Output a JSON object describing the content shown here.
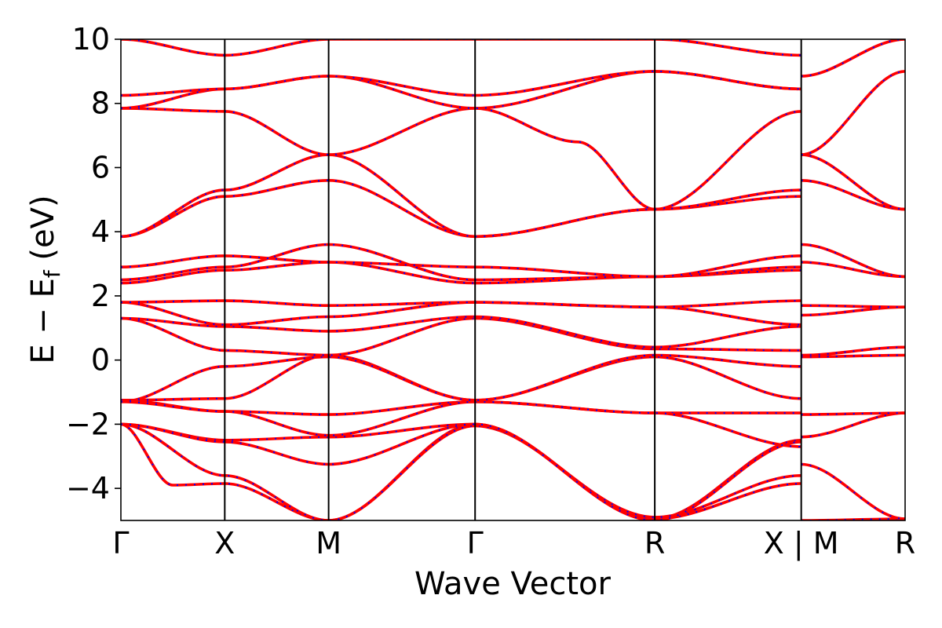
{
  "chart_data": {
    "type": "line",
    "title": "",
    "xlabel": "Wave Vector",
    "ylabel": "E − E",
    "ylabel_subscript": "f",
    "ylabel_unit": " (eV)",
    "ylim": [
      -5,
      10
    ],
    "yticks": [
      -4,
      -2,
      0,
      2,
      4,
      6,
      8,
      10
    ],
    "ytick_labels": [
      "−4",
      "−2",
      "0",
      "2",
      "4",
      "6",
      "8",
      "10"
    ],
    "kpath": [
      {
        "label": "Γ",
        "pos": 0.0
      },
      {
        "label": "X",
        "pos": 1.0
      },
      {
        "label": "M",
        "pos": 2.0
      },
      {
        "label": "Γ",
        "pos": 3.41
      },
      {
        "label": "R",
        "pos": 5.14
      },
      {
        "label": "X | M",
        "pos": 6.55
      },
      {
        "label": "R",
        "pos": 7.55
      }
    ],
    "xlim": [
      0,
      7.55
    ],
    "grid": false,
    "line_colors": {
      "series_a": "#ff0000",
      "series_b": "#0000ff"
    },
    "bands": [
      {
        "x": [
          0,
          1,
          2,
          3.41,
          5.14,
          6.55
        ],
        "y": [
          -2.0,
          -2.5,
          -2.4,
          -2.0,
          -4.95,
          -2.5
        ]
      },
      {
        "x": [
          0,
          0.5,
          1,
          2,
          3.41,
          5.14,
          6.55
        ],
        "y": [
          -2.0,
          -3.9,
          -3.85,
          -5.0,
          -2.0,
          -4.95,
          -3.85
        ]
      },
      {
        "x": [
          0,
          1,
          2,
          3.41,
          5.14,
          6.55
        ],
        "y": [
          -2.0,
          -3.6,
          -5.0,
          -2.05,
          -4.9,
          -3.6
        ]
      },
      {
        "x": [
          0,
          1,
          2,
          3.41,
          5.14,
          6.55
        ],
        "y": [
          -2.0,
          -2.55,
          -3.25,
          -2.0,
          -5.0,
          -2.55
        ]
      },
      {
        "x": [
          0,
          1,
          2,
          3.41,
          5.14,
          6.55
        ],
        "y": [
          -1.25,
          -1.6,
          -1.7,
          -1.3,
          -1.65,
          -1.65
        ]
      },
      {
        "x": [
          0,
          1,
          2,
          3.41,
          5.14,
          6.55
        ],
        "y": [
          -1.3,
          -1.6,
          -2.35,
          -1.3,
          -1.65,
          -2.7
        ]
      },
      {
        "x": [
          0,
          1,
          2,
          3.41,
          5.14,
          6.55
        ],
        "y": [
          -1.25,
          -1.2,
          0.15,
          -1.25,
          0.1,
          -1.2
        ]
      },
      {
        "x": [
          0,
          1,
          2,
          3.41,
          5.14,
          6.55
        ],
        "y": [
          -1.3,
          -0.2,
          0.1,
          -1.25,
          0.15,
          -0.2
        ]
      },
      {
        "x": [
          0,
          1,
          2,
          3.41,
          5.14,
          6.55
        ],
        "y": [
          1.3,
          0.3,
          0.15,
          1.3,
          0.35,
          0.3
        ]
      },
      {
        "x": [
          0,
          1,
          2,
          3.41,
          5.14,
          6.55
        ],
        "y": [
          1.3,
          1.05,
          0.9,
          1.35,
          0.4,
          1.05
        ]
      },
      {
        "x": [
          0,
          1,
          2,
          3.41,
          5.14,
          6.55
        ],
        "y": [
          1.8,
          1.1,
          1.35,
          1.8,
          1.65,
          1.1
        ]
      },
      {
        "x": [
          0,
          1,
          2,
          3.41,
          5.14,
          6.55
        ],
        "y": [
          1.8,
          1.85,
          1.7,
          1.8,
          1.65,
          1.85
        ]
      },
      {
        "x": [
          0,
          1,
          2,
          3.41,
          5.14,
          6.55
        ],
        "y": [
          2.4,
          2.8,
          3.05,
          2.4,
          2.6,
          2.8
        ]
      },
      {
        "x": [
          0,
          1,
          2,
          3.41,
          5.14,
          6.55
        ],
        "y": [
          2.5,
          2.9,
          3.6,
          2.5,
          2.6,
          2.9
        ]
      },
      {
        "x": [
          0,
          1,
          2,
          3.41,
          5.14,
          6.55
        ],
        "y": [
          2.9,
          3.25,
          3.05,
          2.9,
          2.6,
          3.25
        ]
      },
      {
        "x": [
          0,
          1,
          2,
          3.41,
          5.14,
          6.55
        ],
        "y": [
          3.85,
          5.1,
          5.6,
          3.85,
          4.7,
          5.1
        ]
      },
      {
        "x": [
          0,
          1,
          2,
          3.41,
          5.14,
          6.55
        ],
        "y": [
          3.85,
          5.3,
          6.4,
          3.85,
          4.7,
          5.3
        ]
      },
      {
        "x": [
          0,
          1,
          2,
          3.41,
          4.4,
          5.14,
          6.55
        ],
        "y": [
          7.85,
          7.75,
          6.4,
          7.85,
          6.8,
          4.7,
          7.75
        ]
      },
      {
        "x": [
          0,
          1,
          2,
          3.41,
          5.14,
          6.55
        ],
        "y": [
          7.85,
          8.45,
          8.85,
          7.85,
          9.0,
          8.45
        ]
      },
      {
        "x": [
          0,
          1,
          2,
          3.41,
          5.14,
          6.55
        ],
        "y": [
          8.25,
          8.45,
          8.85,
          8.25,
          9.0,
          8.45
        ]
      },
      {
        "x": [
          0,
          1,
          2,
          3.41,
          5.14,
          6.55
        ],
        "y": [
          10.0,
          9.5,
          10.0,
          10.0,
          10.0,
          9.5
        ]
      },
      {
        "x": [
          6.55,
          7.55
        ],
        "y": [
          -5.0,
          -4.95
        ]
      },
      {
        "x": [
          6.55,
          7.55
        ],
        "y": [
          -3.25,
          -4.95
        ]
      },
      {
        "x": [
          6.55,
          7.55
        ],
        "y": [
          -2.4,
          -1.65
        ]
      },
      {
        "x": [
          6.55,
          7.55
        ],
        "y": [
          -1.7,
          -1.65
        ]
      },
      {
        "x": [
          6.55,
          7.55
        ],
        "y": [
          0.1,
          0.15
        ]
      },
      {
        "x": [
          6.55,
          7.55
        ],
        "y": [
          0.15,
          0.4
        ]
      },
      {
        "x": [
          6.55,
          7.55
        ],
        "y": [
          1.4,
          1.65
        ]
      },
      {
        "x": [
          6.55,
          7.55
        ],
        "y": [
          1.7,
          1.65
        ]
      },
      {
        "x": [
          6.55,
          7.55
        ],
        "y": [
          3.05,
          2.6
        ]
      },
      {
        "x": [
          6.55,
          7.55
        ],
        "y": [
          3.6,
          2.6
        ]
      },
      {
        "x": [
          6.55,
          7.55
        ],
        "y": [
          5.6,
          4.7
        ]
      },
      {
        "x": [
          6.55,
          7.55
        ],
        "y": [
          6.4,
          4.7
        ]
      },
      {
        "x": [
          6.55,
          7.55
        ],
        "y": [
          8.85,
          10.0
        ]
      },
      {
        "x": [
          6.55,
          7.55
        ],
        "y": [
          6.4,
          9.0
        ]
      }
    ]
  }
}
